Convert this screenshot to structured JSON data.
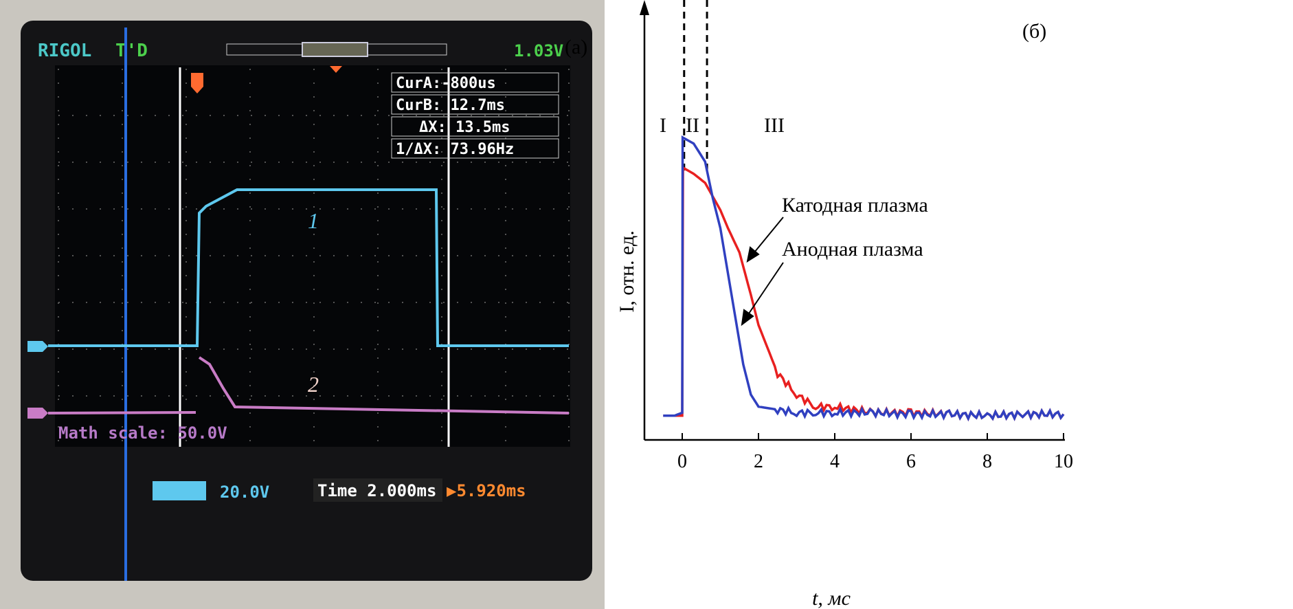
{
  "panel_a": {
    "label": "(а)",
    "brand": "RIGOL",
    "trig_status": "T'D",
    "trigger_level": "1.03V",
    "cursors": {
      "cur_a": "CurA:-800us",
      "cur_b": "CurB: 12.7ms",
      "delta_x": "ΔX: 13.5ms",
      "inv_delta_x": "1/ΔX: 73.96Hz"
    },
    "trace_labels": [
      "1",
      "2"
    ],
    "math_scale": "Math scale: 50.0V",
    "ch1_scale": "20.0V",
    "time_base": "Time 2.000ms",
    "trigger_offset": "▶5.920ms",
    "colors": {
      "ch1": "#5ec8ee",
      "math": "#c97cc6",
      "cursor": "#ffffff",
      "trigger": "#ff6a30",
      "blue_line": "#2a6de0"
    }
  },
  "panel_b": {
    "label": "(б)",
    "regions": [
      "I",
      "II",
      "III"
    ],
    "annotations": [
      "Катодная плазма",
      "Анодная плазма"
    ]
  },
  "chart_data": {
    "type": "line",
    "xlabel": "t, мс",
    "ylabel": "I, отн. ед.",
    "xlim": [
      -1,
      10
    ],
    "ylim": [
      0,
      1.15
    ],
    "xticks": [
      "0",
      "2",
      "4",
      "6",
      "8",
      "10"
    ],
    "vlines": [
      0.05,
      0.65
    ],
    "grid": false,
    "series": [
      {
        "color": "#3040c0",
        "label": "Анодная плазма",
        "x": [
          -0.5,
          -0.2,
          0,
          0.01,
          0.3,
          0.6,
          0.8,
          1.0,
          1.2,
          1.4,
          1.6,
          1.8,
          2.0,
          2.5,
          3,
          3.5,
          4,
          5,
          6,
          7,
          8,
          9,
          10
        ],
        "y": [
          0.08,
          0.08,
          0.09,
          1.0,
          0.98,
          0.92,
          0.8,
          0.7,
          0.55,
          0.4,
          0.25,
          0.15,
          0.11,
          0.1,
          0.09,
          0.09,
          0.09,
          0.09,
          0.085,
          0.085,
          0.08,
          0.085,
          0.085
        ]
      },
      {
        "color": "#e82020",
        "label": "Катодная плазма",
        "x": [
          -0.5,
          -0.2,
          0,
          0.02,
          0.3,
          0.6,
          1.0,
          1.2,
          1.5,
          1.8,
          2.0,
          2.5,
          3,
          3.5,
          4,
          5,
          6,
          7,
          8,
          9,
          10
        ],
        "y": [
          0.08,
          0.08,
          0.08,
          0.9,
          0.88,
          0.85,
          0.76,
          0.7,
          0.62,
          0.48,
          0.38,
          0.22,
          0.15,
          0.11,
          0.11,
          0.09,
          0.09,
          0.085,
          0.08,
          0.085,
          0.085
        ]
      }
    ]
  }
}
